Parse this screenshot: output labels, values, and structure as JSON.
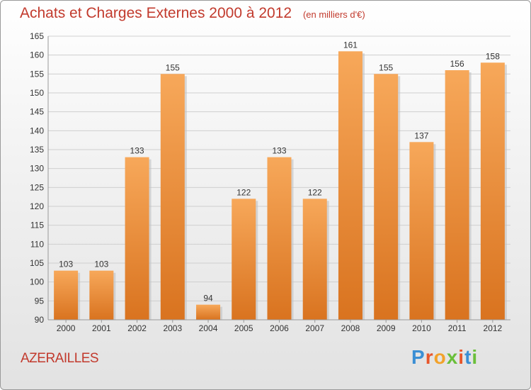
{
  "header": {
    "title": "Achats et Charges Externes 2000 à 2012",
    "unit": "(en milliers d'€)"
  },
  "commune": "AZERAILLES",
  "logo": {
    "text": "Proxiti",
    "letters": [
      {
        "char": "P",
        "color": "#3b8fd4"
      },
      {
        "char": "r",
        "color": "#e8562a"
      },
      {
        "char": "o",
        "color": "#f2a22b"
      },
      {
        "char": "x",
        "color": "#6abf3a"
      },
      {
        "char": "i",
        "color": "#e8562a"
      },
      {
        "char": "t",
        "color": "#3b8fd4"
      },
      {
        "char": "i",
        "color": "#6abf3a"
      }
    ]
  },
  "colors": {
    "bar_light": "#f7a85a",
    "bar_dark": "#d9731f",
    "grid": "#cfcfcf",
    "axis_text": "#333333"
  },
  "chart_data": {
    "type": "bar",
    "title": "Achats et Charges Externes 2000 à 2012",
    "subtitle": "(en milliers d'€)",
    "xlabel": "",
    "ylabel": "",
    "ylim": [
      90,
      165
    ],
    "ytick_step": 5,
    "grid": true,
    "categories": [
      "2000",
      "2001",
      "2002",
      "2003",
      "2004",
      "2005",
      "2006",
      "2007",
      "2008",
      "2009",
      "2010",
      "2011",
      "2012"
    ],
    "values": [
      103,
      103,
      133,
      155,
      94,
      122,
      133,
      122,
      161,
      155,
      137,
      156,
      158
    ]
  }
}
